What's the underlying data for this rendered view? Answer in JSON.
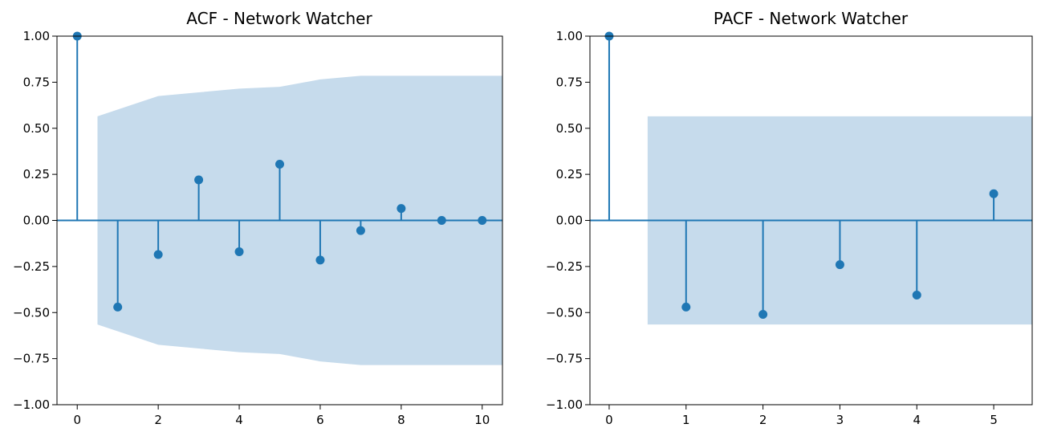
{
  "figure": {
    "stem_color": "#1f77b4",
    "band_color": "#c6dbec"
  },
  "chart_data": [
    {
      "type": "stem",
      "title": "ACF - Network Watcher",
      "xlabel": "",
      "ylabel": "",
      "xlim": [
        -0.5,
        10.5
      ],
      "ylim": [
        -1.0,
        1.0
      ],
      "x_ticks": [
        0,
        2,
        4,
        6,
        8,
        10
      ],
      "y_ticks": [
        -1.0,
        -0.75,
        -0.5,
        -0.25,
        0.0,
        0.25,
        0.5,
        0.75,
        1.0
      ],
      "x_tick_labels": [
        "0",
        "2",
        "4",
        "6",
        "8",
        "10"
      ],
      "y_tick_labels": [
        "−1.00",
        "−0.75",
        "−0.50",
        "−0.25",
        "0.00",
        "0.25",
        "0.50",
        "0.75",
        "1.00"
      ],
      "grid": false,
      "lags": [
        0,
        1,
        2,
        3,
        4,
        5,
        6,
        7,
        8,
        9,
        10
      ],
      "values": [
        1.0,
        -0.47,
        -0.185,
        0.22,
        -0.17,
        0.305,
        -0.215,
        -0.055,
        0.065,
        0.0,
        0.0
      ],
      "confidence_interval": {
        "x": [
          0.5,
          2,
          3,
          4,
          5,
          6,
          7,
          8,
          9,
          10,
          10.5
        ],
        "upper": [
          0.565,
          0.675,
          0.695,
          0.715,
          0.725,
          0.765,
          0.785,
          0.785,
          0.785,
          0.785,
          0.785
        ]
      }
    },
    {
      "type": "stem",
      "title": "PACF - Network Watcher",
      "xlabel": "",
      "ylabel": "",
      "xlim": [
        -0.25,
        5.5
      ],
      "ylim": [
        -1.0,
        1.0
      ],
      "x_ticks": [
        0,
        1,
        2,
        3,
        4,
        5
      ],
      "y_ticks": [
        -1.0,
        -0.75,
        -0.5,
        -0.25,
        0.0,
        0.25,
        0.5,
        0.75,
        1.0
      ],
      "x_tick_labels": [
        "0",
        "1",
        "2",
        "3",
        "4",
        "5"
      ],
      "y_tick_labels": [
        "−1.00",
        "−0.75",
        "−0.50",
        "−0.25",
        "0.00",
        "0.25",
        "0.50",
        "0.75",
        "1.00"
      ],
      "grid": false,
      "lags": [
        0,
        1,
        2,
        3,
        4,
        5
      ],
      "values": [
        1.0,
        -0.47,
        -0.51,
        -0.24,
        -0.405,
        0.145
      ],
      "confidence_interval": {
        "x": [
          0.5,
          5.5
        ],
        "upper": [
          0.565,
          0.565
        ]
      }
    }
  ]
}
